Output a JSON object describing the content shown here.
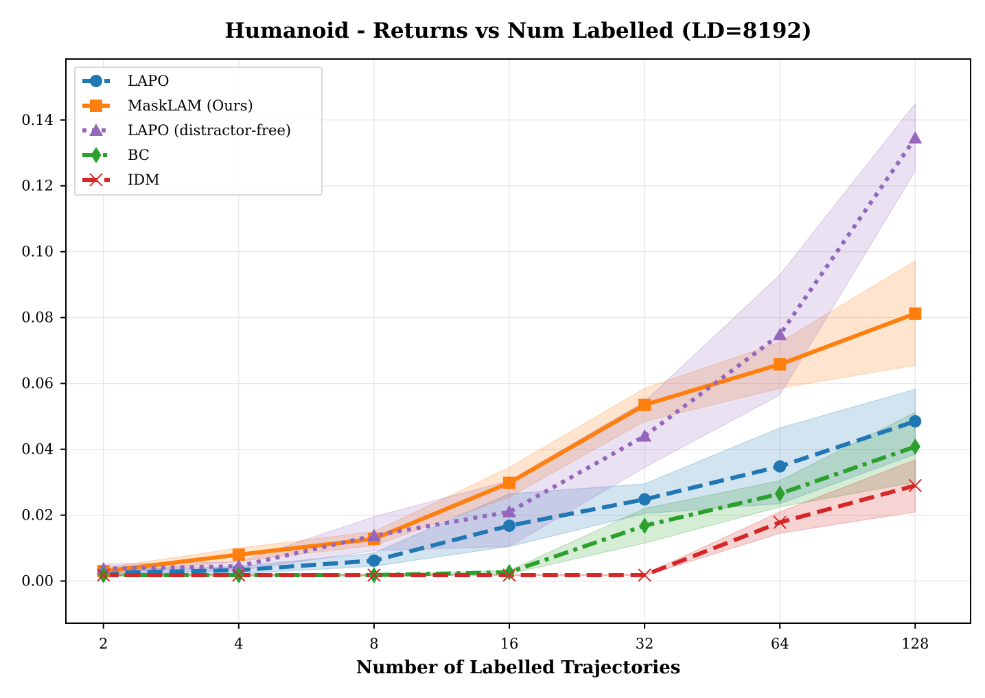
{
  "chart_data": {
    "type": "line",
    "title": "Humanoid - Returns vs Num Labelled (LD=8192)",
    "xlabel": "Number of Labelled Trajectories",
    "ylabel": "",
    "x_scale": "log2",
    "x": [
      2,
      4,
      8,
      16,
      32,
      64,
      128
    ],
    "x_tick_labels": [
      "2",
      "4",
      "8",
      "16",
      "32",
      "64",
      "128"
    ],
    "xlim": [
      1.65,
      170
    ],
    "ylim": [
      -0.0128,
      0.1585
    ],
    "y_ticks": [
      0.0,
      0.02,
      0.04,
      0.06,
      0.08,
      0.1,
      0.12,
      0.14
    ],
    "y_tick_labels": [
      "0.00",
      "0.02",
      "0.04",
      "0.06",
      "0.08",
      "0.10",
      "0.12",
      "0.14"
    ],
    "grid": true,
    "legend_position": "top-left",
    "series": [
      {
        "name": "LAPO",
        "color": "#1f77b4",
        "line_style": "dashed",
        "marker": "circle",
        "x": [
          2,
          4,
          8,
          16,
          32,
          64,
          128
        ],
        "values": [
          0.0025,
          0.0033,
          0.0062,
          0.0168,
          0.0248,
          0.0348,
          0.0485
        ],
        "lower": [
          0.0015,
          0.0022,
          0.0045,
          0.0105,
          0.0205,
          0.0235,
          0.0385
        ],
        "upper": [
          0.0035,
          0.0044,
          0.0085,
          0.0265,
          0.0295,
          0.0465,
          0.0582
        ]
      },
      {
        "name": "MaskLAM (Ours)",
        "color": "#ff7f0e",
        "line_style": "solid",
        "marker": "square",
        "x": [
          2,
          4,
          8,
          16,
          32,
          64,
          128
        ],
        "values": [
          0.003,
          0.008,
          0.0128,
          0.0298,
          0.0535,
          0.0658,
          0.0812
        ],
        "lower": [
          0.002,
          0.006,
          0.0108,
          0.0255,
          0.0485,
          0.0585,
          0.0655
        ],
        "upper": [
          0.004,
          0.01,
          0.015,
          0.0345,
          0.0585,
          0.0725,
          0.0972
        ]
      },
      {
        "name": "LAPO (distractor-free)",
        "color": "#9467bd",
        "line_style": "dotted",
        "marker": "triangle",
        "x": [
          2,
          4,
          8,
          16,
          32,
          64,
          128
        ],
        "values": [
          0.0037,
          0.0045,
          0.0138,
          0.021,
          0.044,
          0.0748,
          0.1345
        ],
        "lower": [
          0.0022,
          0.0032,
          0.0092,
          0.0105,
          0.0345,
          0.0565,
          0.1245
        ],
        "upper": [
          0.0052,
          0.0058,
          0.0195,
          0.0305,
          0.0545,
          0.093,
          0.145
        ]
      },
      {
        "name": "BC",
        "color": "#2ca02c",
        "line_style": "dashdot",
        "marker": "diamond",
        "x": [
          2,
          4,
          8,
          16,
          32,
          64,
          128
        ],
        "values": [
          0.0018,
          0.0018,
          0.0018,
          0.0027,
          0.0168,
          0.0265,
          0.0408
        ],
        "lower": [
          0.0015,
          0.0015,
          0.0015,
          0.0022,
          0.0115,
          0.0225,
          0.03
        ],
        "upper": [
          0.0021,
          0.0021,
          0.0021,
          0.0032,
          0.022,
          0.0305,
          0.0512
        ]
      },
      {
        "name": "IDM",
        "color": "#d62728",
        "line_style": "dashed",
        "marker": "x",
        "x": [
          2,
          4,
          8,
          16,
          32,
          64,
          128
        ],
        "values": [
          0.0018,
          0.0018,
          0.0018,
          0.0018,
          0.0018,
          0.0178,
          0.029
        ],
        "lower": [
          0.0016,
          0.0016,
          0.0016,
          0.0016,
          0.0016,
          0.0145,
          0.021
        ],
        "upper": [
          0.002,
          0.002,
          0.002,
          0.002,
          0.002,
          0.021,
          0.0368
        ]
      }
    ]
  }
}
